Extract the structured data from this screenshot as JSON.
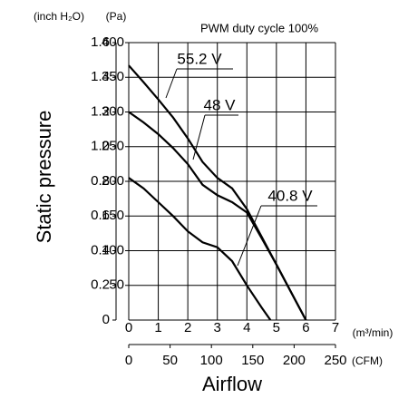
{
  "chart_data": {
    "type": "line",
    "title": "PWM duty cycle 100%",
    "y_label": "Static pressure",
    "x_label": "Airflow",
    "y_unit": "(Pa)",
    "y2_unit": "(inch H₂O)",
    "x_unit": "(m³/min)",
    "x2_unit": "(CFM)",
    "xlim": [
      0,
      7
    ],
    "xticks": [
      0,
      1,
      2,
      3,
      4,
      5,
      6,
      7
    ],
    "x2lim": [
      0,
      250
    ],
    "x2ticks": [
      0,
      50,
      100,
      150,
      200,
      250
    ],
    "ylim": [
      0,
      400
    ],
    "yticks": [
      50,
      100,
      150,
      200,
      250,
      300,
      350,
      400
    ],
    "y2lim": [
      0,
      1.6
    ],
    "y2ticks": [
      0,
      0.2,
      0.4,
      0.6,
      0.8,
      {
        "value": 1,
        "label": "1.0"
      },
      1.2,
      1.4,
      1.6
    ],
    "grid": true,
    "series": [
      {
        "name": "55.2 V",
        "color": "#000000",
        "x": [
          0,
          0.5,
          1,
          1.5,
          2,
          2.5,
          3,
          3.5,
          4,
          4.5,
          5,
          5.5,
          6
        ],
        "values": [
          367,
          343,
          318,
          292,
          262,
          228,
          205,
          190,
          160,
          120,
          80,
          40,
          0
        ]
      },
      {
        "name": "48 V",
        "color": "#000000",
        "x": [
          0,
          0.5,
          1,
          1.5,
          2,
          2.5,
          3,
          3.5,
          4,
          4.5,
          5,
          5.5,
          6
        ],
        "values": [
          300,
          285,
          268,
          248,
          225,
          195,
          180,
          170,
          155,
          118,
          80,
          40,
          0
        ]
      },
      {
        "name": "40.8 V",
        "color": "#000000",
        "x": [
          0,
          0.5,
          1,
          1.5,
          2,
          2.5,
          3,
          3.5,
          4,
          4.5,
          4.8
        ],
        "values": [
          205,
          190,
          170,
          150,
          128,
          112,
          105,
          85,
          50,
          18,
          0
        ]
      }
    ]
  }
}
